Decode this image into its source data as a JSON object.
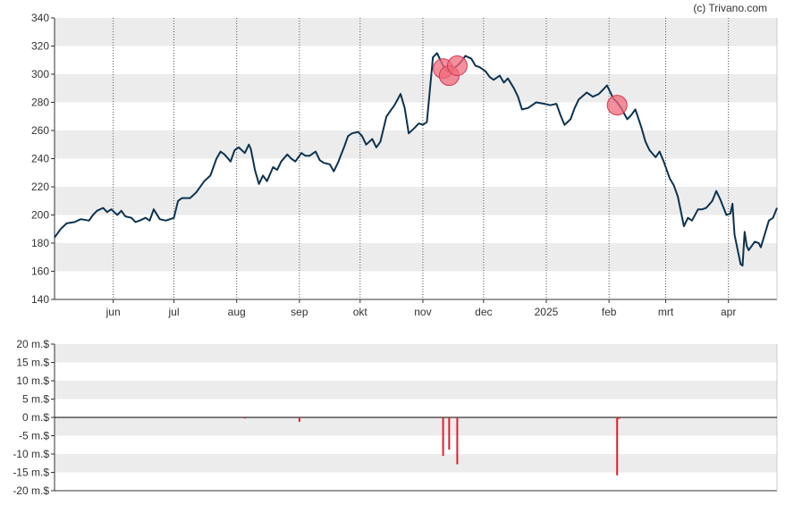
{
  "credit": "(c) Trivano.com",
  "colors": {
    "line": "#0d3350",
    "band": "#ececec",
    "grid_dotted": "#555555",
    "marker_fill": "#f06a7d",
    "marker_stroke": "#d0394f",
    "volume_bar": "#e0202e",
    "axis": "#333333"
  },
  "chart_data": [
    {
      "type": "line",
      "title": "",
      "xlabel": "",
      "ylabel": "",
      "ylim": [
        140,
        340
      ],
      "yticks": [
        140,
        160,
        180,
        200,
        220,
        240,
        260,
        280,
        300,
        320,
        340
      ],
      "band_ranges": [
        [
          160,
          180
        ],
        [
          200,
          220
        ],
        [
          240,
          260
        ],
        [
          280,
          300
        ],
        [
          320,
          340
        ]
      ],
      "grid": "dotted vertical lines at month starts",
      "xlim": [
        "2024-05-03",
        "2025-04-25"
      ],
      "month_ticks": [
        {
          "label": "jun",
          "date": "2024-06-01"
        },
        {
          "label": "jul",
          "date": "2024-07-01"
        },
        {
          "label": "aug",
          "date": "2024-08-01"
        },
        {
          "label": "sep",
          "date": "2024-09-01"
        },
        {
          "label": "okt",
          "date": "2024-10-01"
        },
        {
          "label": "nov",
          "date": "2024-11-01"
        },
        {
          "label": "dec",
          "date": "2024-12-01"
        },
        {
          "label": "2025",
          "date": "2025-01-01"
        },
        {
          "label": "feb",
          "date": "2025-02-01"
        },
        {
          "label": "mrt",
          "date": "2025-03-01"
        },
        {
          "label": "apr",
          "date": "2025-04-01"
        }
      ],
      "series": [
        {
          "values": [
            [
              "2024-05-03",
              184
            ],
            [
              "2024-05-06",
              190
            ],
            [
              "2024-05-09",
              194
            ],
            [
              "2024-05-13",
              195
            ],
            [
              "2024-05-16",
              197
            ],
            [
              "2024-05-20",
              196
            ],
            [
              "2024-05-22",
              200
            ],
            [
              "2024-05-24",
              203
            ],
            [
              "2024-05-27",
              205
            ],
            [
              "2024-05-29",
              202
            ],
            [
              "2024-05-31",
              204
            ],
            [
              "2024-06-03",
              200
            ],
            [
              "2024-06-05",
              203
            ],
            [
              "2024-06-07",
              199
            ],
            [
              "2024-06-10",
              198
            ],
            [
              "2024-06-12",
              195
            ],
            [
              "2024-06-14",
              196
            ],
            [
              "2024-06-17",
              198
            ],
            [
              "2024-06-19",
              196
            ],
            [
              "2024-06-21",
              204
            ],
            [
              "2024-06-24",
              197
            ],
            [
              "2024-06-27",
              196
            ],
            [
              "2024-07-01",
              198
            ],
            [
              "2024-07-03",
              210
            ],
            [
              "2024-07-05",
              212
            ],
            [
              "2024-07-09",
              212
            ],
            [
              "2024-07-12",
              216
            ],
            [
              "2024-07-16",
              224
            ],
            [
              "2024-07-19",
              228
            ],
            [
              "2024-07-22",
              240
            ],
            [
              "2024-07-24",
              245
            ],
            [
              "2024-07-26",
              243
            ],
            [
              "2024-07-29",
              238
            ],
            [
              "2024-07-31",
              246
            ],
            [
              "2024-08-02",
              248
            ],
            [
              "2024-08-05",
              244
            ],
            [
              "2024-08-07",
              250
            ],
            [
              "2024-08-08",
              247
            ],
            [
              "2024-08-10",
              232
            ],
            [
              "2024-08-12",
              222
            ],
            [
              "2024-08-14",
              228
            ],
            [
              "2024-08-16",
              224
            ],
            [
              "2024-08-19",
              234
            ],
            [
              "2024-08-21",
              232
            ],
            [
              "2024-08-23",
              238
            ],
            [
              "2024-08-26",
              243
            ],
            [
              "2024-08-28",
              240
            ],
            [
              "2024-08-30",
              238
            ],
            [
              "2024-09-02",
              244
            ],
            [
              "2024-09-04",
              242
            ],
            [
              "2024-09-06",
              242
            ],
            [
              "2024-09-09",
              245
            ],
            [
              "2024-09-11",
              239
            ],
            [
              "2024-09-13",
              237
            ],
            [
              "2024-09-16",
              236
            ],
            [
              "2024-09-18",
              231
            ],
            [
              "2024-09-20",
              237
            ],
            [
              "2024-09-23",
              248
            ],
            [
              "2024-09-25",
              256
            ],
            [
              "2024-09-27",
              258
            ],
            [
              "2024-09-30",
              259
            ],
            [
              "2024-10-02",
              256
            ],
            [
              "2024-10-04",
              250
            ],
            [
              "2024-10-07",
              254
            ],
            [
              "2024-10-09",
              248
            ],
            [
              "2024-10-11",
              252
            ],
            [
              "2024-10-14",
              270
            ],
            [
              "2024-10-16",
              274
            ],
            [
              "2024-10-18",
              278
            ],
            [
              "2024-10-21",
              286
            ],
            [
              "2024-10-23",
              276
            ],
            [
              "2024-10-25",
              258
            ],
            [
              "2024-10-28",
              262
            ],
            [
              "2024-10-30",
              265
            ],
            [
              "2024-11-01",
              264
            ],
            [
              "2024-11-03",
              266
            ],
            [
              "2024-11-06",
              312
            ],
            [
              "2024-11-08",
              315
            ],
            [
              "2024-11-11",
              306
            ],
            [
              "2024-11-13",
              302
            ],
            [
              "2024-11-15",
              303
            ],
            [
              "2024-11-18",
              306
            ],
            [
              "2024-11-20",
              309
            ],
            [
              "2024-11-22",
              313
            ],
            [
              "2024-11-25",
              311
            ],
            [
              "2024-11-27",
              306
            ],
            [
              "2024-11-29",
              305
            ],
            [
              "2024-12-02",
              302
            ],
            [
              "2024-12-04",
              298
            ],
            [
              "2024-12-06",
              296
            ],
            [
              "2024-12-09",
              299
            ],
            [
              "2024-12-11",
              294
            ],
            [
              "2024-12-13",
              297
            ],
            [
              "2024-12-16",
              290
            ],
            [
              "2024-12-18",
              284
            ],
            [
              "2024-12-20",
              275
            ],
            [
              "2024-12-23",
              276
            ],
            [
              "2024-12-27",
              280
            ],
            [
              "2024-12-31",
              279
            ],
            [
              "2025-01-03",
              278
            ],
            [
              "2025-01-06",
              279
            ],
            [
              "2025-01-08",
              271
            ],
            [
              "2025-01-10",
              264
            ],
            [
              "2025-01-13",
              268
            ],
            [
              "2025-01-15",
              276
            ],
            [
              "2025-01-17",
              282
            ],
            [
              "2025-01-21",
              287
            ],
            [
              "2025-01-24",
              284
            ],
            [
              "2025-01-27",
              286
            ],
            [
              "2025-01-29",
              289
            ],
            [
              "2025-01-31",
              292
            ],
            [
              "2025-02-03",
              283
            ],
            [
              "2025-02-05",
              280
            ],
            [
              "2025-02-07",
              276
            ],
            [
              "2025-02-10",
              268
            ],
            [
              "2025-02-12",
              271
            ],
            [
              "2025-02-14",
              275
            ],
            [
              "2025-02-17",
              262
            ],
            [
              "2025-02-19",
              252
            ],
            [
              "2025-02-21",
              246
            ],
            [
              "2025-02-24",
              241
            ],
            [
              "2025-02-26",
              245
            ],
            [
              "2025-02-28",
              238
            ],
            [
              "2025-03-03",
              226
            ],
            [
              "2025-03-05",
              221
            ],
            [
              "2025-03-07",
              213
            ],
            [
              "2025-03-10",
              192
            ],
            [
              "2025-03-12",
              198
            ],
            [
              "2025-03-14",
              196
            ],
            [
              "2025-03-17",
              204
            ],
            [
              "2025-03-19",
              204
            ],
            [
              "2025-03-21",
              205
            ],
            [
              "2025-03-24",
              210
            ],
            [
              "2025-03-26",
              217
            ],
            [
              "2025-03-28",
              211
            ],
            [
              "2025-03-31",
              200
            ],
            [
              "2025-04-02",
              201
            ],
            [
              "2025-04-03",
              208
            ],
            [
              "2025-04-04",
              186
            ],
            [
              "2025-04-07",
              165
            ],
            [
              "2025-04-08",
              164
            ],
            [
              "2025-04-09",
              188
            ],
            [
              "2025-04-10",
              178
            ],
            [
              "2025-04-11",
              175
            ],
            [
              "2025-04-14",
              181
            ],
            [
              "2025-04-16",
              180
            ],
            [
              "2025-04-17",
              177
            ],
            [
              "2025-04-21",
              196
            ],
            [
              "2025-04-23",
              198
            ],
            [
              "2025-04-25",
              205
            ]
          ]
        }
      ],
      "markers": [
        {
          "date": "2024-11-11",
          "value": 304
        },
        {
          "date": "2024-11-14",
          "value": 299
        },
        {
          "date": "2024-11-18",
          "value": 306
        },
        {
          "date": "2025-02-05",
          "value": 278
        }
      ]
    },
    {
      "type": "bar",
      "title": "",
      "xlabel": "",
      "ylabel": "",
      "ylim": [
        -20,
        20
      ],
      "ytick_labels": [
        {
          "value": 20,
          "label": "20 m.$"
        },
        {
          "value": 15,
          "label": "15 m.$"
        },
        {
          "value": 10,
          "label": "10 m.$"
        },
        {
          "value": 5,
          "label": "5 m.$"
        },
        {
          "value": 0,
          "label": "0 m.$"
        },
        {
          "value": -5,
          "label": "-5 m.$"
        },
        {
          "value": -10,
          "label": "-10 m.$"
        },
        {
          "value": -15,
          "label": "-15 m.$"
        },
        {
          "value": -20,
          "label": "-20 m.$"
        }
      ],
      "band_ranges": [
        [
          15,
          20
        ],
        [
          5,
          10
        ],
        [
          -5,
          0
        ],
        [
          -15,
          -10
        ]
      ],
      "values": [
        {
          "date": "2024-08-05",
          "value": -0.3
        },
        {
          "date": "2024-09-01",
          "value": -1.2
        },
        {
          "date": "2024-11-11",
          "value": -10.5
        },
        {
          "date": "2024-11-14",
          "value": -8.8
        },
        {
          "date": "2024-11-18",
          "value": -12.8
        },
        {
          "date": "2025-02-05",
          "value": -15.8
        },
        {
          "date": "2025-02-06",
          "value": -0.4
        }
      ]
    }
  ]
}
